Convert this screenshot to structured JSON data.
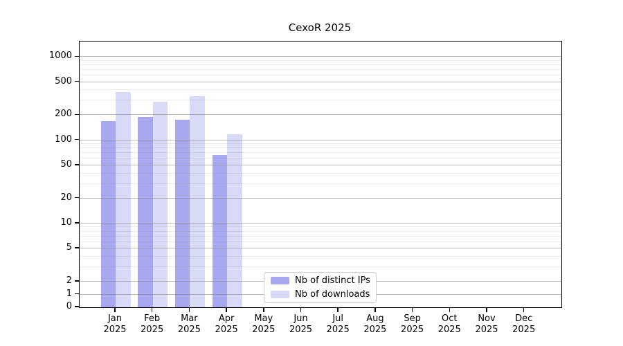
{
  "title": "CexoR 2025",
  "chart_data": {
    "type": "bar",
    "title": "CexoR 2025",
    "categories": [
      "Jan 2025",
      "Feb 2025",
      "Mar 2025",
      "Apr 2025",
      "May 2025",
      "Jun 2025",
      "Jul 2025",
      "Aug 2025",
      "Sep 2025",
      "Oct 2025",
      "Nov 2025",
      "Dec 2025"
    ],
    "series": [
      {
        "name": "Nb of distinct IPs",
        "color": "#a8a8f0",
        "values": [
          170,
          190,
          178,
          67,
          null,
          null,
          null,
          null,
          null,
          null,
          null,
          null
        ]
      },
      {
        "name": "Nb of downloads",
        "color": "#d9d9f8",
        "values": [
          380,
          290,
          340,
          119,
          null,
          null,
          null,
          null,
          null,
          null,
          null,
          null
        ]
      }
    ],
    "xlabel": "",
    "ylabel": "",
    "yscale": "symlog",
    "ylim": [
      0,
      1400
    ],
    "yticks": [
      0,
      1,
      2,
      5,
      10,
      20,
      50,
      100,
      200,
      500,
      1000
    ],
    "minor_gridlines": [
      3,
      4,
      6,
      7,
      8,
      9,
      30,
      40,
      60,
      70,
      80,
      90,
      300,
      400,
      600,
      700,
      800,
      900
    ],
    "grid": "on",
    "legend_position": "lower center"
  }
}
